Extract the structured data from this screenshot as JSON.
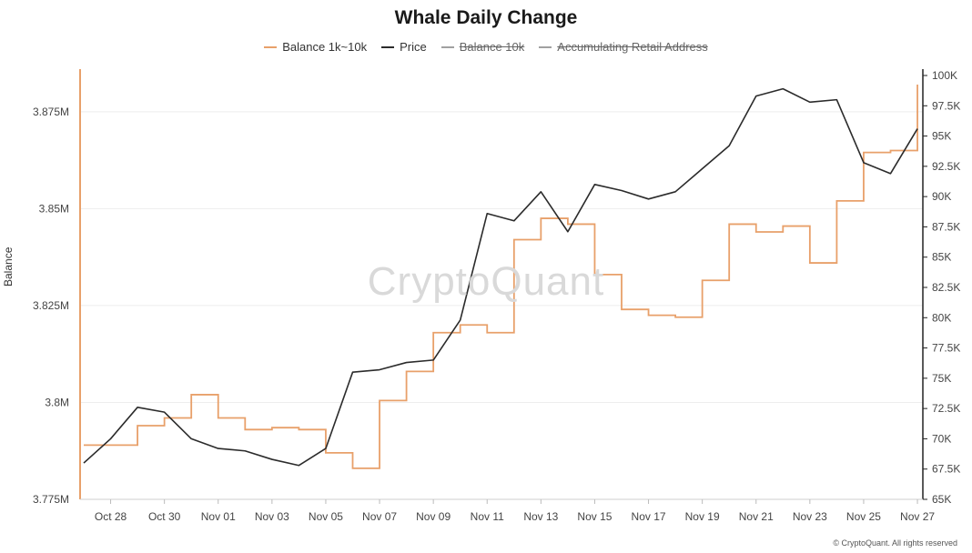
{
  "chart_data": {
    "type": "line",
    "title": "Whale Daily Change",
    "ylabel": "Balance",
    "y_left_ticks": [
      "3.775M",
      "3.8M",
      "3.825M",
      "3.85M",
      "3.875M"
    ],
    "y_left_range": [
      3775000,
      3886000
    ],
    "y_right_ticks": [
      "65K",
      "67.5K",
      "70K",
      "72.5K",
      "75K",
      "77.5K",
      "80K",
      "82.5K",
      "85K",
      "87.5K",
      "90K",
      "92.5K",
      "95K",
      "97.5K",
      "100K"
    ],
    "y_right_range": [
      65000,
      100000
    ],
    "x_tick_labels": [
      "Oct 28",
      "Oct 30",
      "Nov 01",
      "Nov 03",
      "Nov 05",
      "Nov 07",
      "Nov 09",
      "Nov 11",
      "Nov 13",
      "Nov 15",
      "Nov 17",
      "Nov 19",
      "Nov 21",
      "Nov 23",
      "Nov 25",
      "Nov 27"
    ],
    "x_dates": [
      "Oct 27",
      "Oct 28",
      "Oct 29",
      "Oct 30",
      "Oct 31",
      "Nov 01",
      "Nov 02",
      "Nov 03",
      "Nov 04",
      "Nov 05",
      "Nov 06",
      "Nov 07",
      "Nov 08",
      "Nov 09",
      "Nov 10",
      "Nov 11",
      "Nov 12",
      "Nov 13",
      "Nov 14",
      "Nov 15",
      "Nov 16",
      "Nov 17",
      "Nov 18",
      "Nov 19",
      "Nov 20",
      "Nov 21",
      "Nov 22",
      "Nov 23",
      "Nov 24",
      "Nov 25",
      "Nov 26",
      "Nov 27"
    ],
    "legend_position": "top-center",
    "grid": true,
    "series": [
      {
        "name": "Balance 1k~10k",
        "axis": "left",
        "color": "#e8a06a",
        "style": "step",
        "values": [
          3789000,
          3789000,
          3794000,
          3796000,
          3802000,
          3796000,
          3793000,
          3793500,
          3793000,
          3787000,
          3783000,
          3800500,
          3808000,
          3818000,
          3820000,
          3818000,
          3842000,
          3847500,
          3846000,
          3833000,
          3824000,
          3822500,
          3822000,
          3831500,
          3846000,
          3844000,
          3845500,
          3836000,
          3852000,
          3864500,
          3865000,
          3882000
        ]
      },
      {
        "name": "Price",
        "axis": "right",
        "color": "#2b2b2b",
        "style": "line",
        "values": [
          68000,
          70000,
          72600,
          72200,
          70000,
          69200,
          69000,
          68300,
          67800,
          69200,
          75500,
          75700,
          76300,
          76500,
          79800,
          88600,
          88000,
          90400,
          87100,
          91000,
          90500,
          89800,
          90400,
          92300,
          94200,
          98300,
          98900,
          97800,
          98000,
          92800,
          91900,
          95600
        ]
      },
      {
        "name": "Balance 10k",
        "axis": "left",
        "color": "#a0a0a0",
        "disabled": true,
        "values": []
      },
      {
        "name": "Accumulating Retail Address",
        "axis": "left",
        "color": "#a0a0a0",
        "disabled": true,
        "values": []
      }
    ]
  },
  "watermark": "CryptoQuant",
  "copyright": "© CryptoQuant. All rights reserved"
}
